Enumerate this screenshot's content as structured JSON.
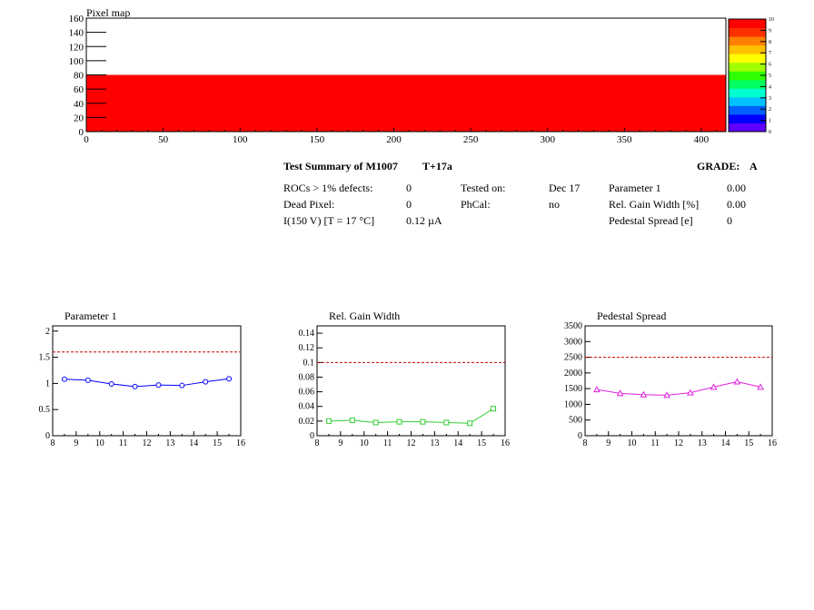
{
  "colors": {
    "fill": "#ff0000",
    "p1_line": "#0000ff",
    "rg_line": "#33cc33",
    "ps_line": "#e020e0",
    "dashed": "#cc0000"
  },
  "chart_data": [
    {
      "id": "pixel_map",
      "type": "heatmap",
      "title": "Pixel map",
      "xlim": [
        0,
        416
      ],
      "ylim": [
        0,
        160
      ],
      "xticks": [
        "0",
        "50",
        "100",
        "150",
        "200",
        "250",
        "300",
        "350",
        "400"
      ],
      "yticks": [
        "0",
        "20",
        "40",
        "60",
        "80",
        "100",
        "120",
        "140",
        "160"
      ],
      "filled_region": {
        "x": [
          0,
          416
        ],
        "y": [
          0,
          80
        ]
      },
      "colorbar": {
        "min": 0,
        "max": 10,
        "ticks": [
          "0",
          "1",
          "2",
          "3",
          "4",
          "5",
          "6",
          "7",
          "8",
          "9",
          "10"
        ]
      }
    },
    {
      "id": "parameter1",
      "type": "line",
      "title": "Parameter 1",
      "xlim": [
        8,
        16
      ],
      "ylim": [
        0,
        2.1
      ],
      "xticks": [
        "8",
        "9",
        "10",
        "11",
        "12",
        "13",
        "14",
        "15",
        "16"
      ],
      "yticks": [
        "0",
        "0.5",
        "1",
        "1.5",
        "2"
      ],
      "x": [
        8.5,
        9.5,
        10.5,
        11.5,
        12.5,
        13.5,
        14.5,
        15.5
      ],
      "values": [
        1.08,
        1.06,
        0.99,
        0.94,
        0.97,
        0.96,
        1.03,
        1.09
      ],
      "threshold": 1.6,
      "marker": "circle"
    },
    {
      "id": "rel_gain_width",
      "type": "line",
      "title": "Rel. Gain Width",
      "xlim": [
        8,
        16
      ],
      "ylim": [
        0,
        0.15
      ],
      "xticks": [
        "8",
        "9",
        "10",
        "11",
        "12",
        "13",
        "14",
        "15",
        "16"
      ],
      "yticks": [
        "0",
        "0.02",
        "0.04",
        "0.06",
        "0.08",
        "0.1",
        "0.12",
        "0.14"
      ],
      "x": [
        8.5,
        9.5,
        10.5,
        11.5,
        12.5,
        13.5,
        14.5,
        15.5
      ],
      "values": [
        0.02,
        0.021,
        0.018,
        0.019,
        0.019,
        0.018,
        0.017,
        0.037
      ],
      "threshold": 0.1,
      "marker": "square"
    },
    {
      "id": "pedestal_spread",
      "type": "line",
      "title": "Pedestal Spread",
      "xlim": [
        8,
        16
      ],
      "ylim": [
        0,
        3500
      ],
      "xticks": [
        "8",
        "9",
        "10",
        "11",
        "12",
        "13",
        "14",
        "15",
        "16"
      ],
      "yticks": [
        "0",
        "500",
        "1000",
        "1500",
        "2000",
        "2500",
        "3000",
        "3500"
      ],
      "x": [
        8.5,
        9.5,
        10.5,
        11.5,
        12.5,
        13.5,
        14.5,
        15.5
      ],
      "values": [
        1470,
        1350,
        1310,
        1290,
        1370,
        1550,
        1720,
        1550
      ],
      "threshold": 2500,
      "marker": "triangle"
    }
  ],
  "summary": {
    "title": "Test Summary of M1007",
    "test": "T+17a",
    "grade_label": "GRADE:",
    "grade": "A",
    "rocs_label": "ROCs > 1% defects:",
    "rocs_value": "0",
    "dead_label": "Dead Pixel:",
    "dead_value": "0",
    "current_label": "I(150 V) [T = 17 °C]",
    "current_value": "0.12 µA",
    "tested_label": "Tested on:",
    "tested_value": "Dec 17",
    "phcal_label": "PhCal:",
    "phcal_value": "no",
    "param1_label": "Parameter 1",
    "param1_value": "0.00",
    "rgw_label": "Rel. Gain Width [%]",
    "rgw_value": "0.00",
    "ps_label": "Pedestal Spread [e]",
    "ps_value": "0"
  }
}
